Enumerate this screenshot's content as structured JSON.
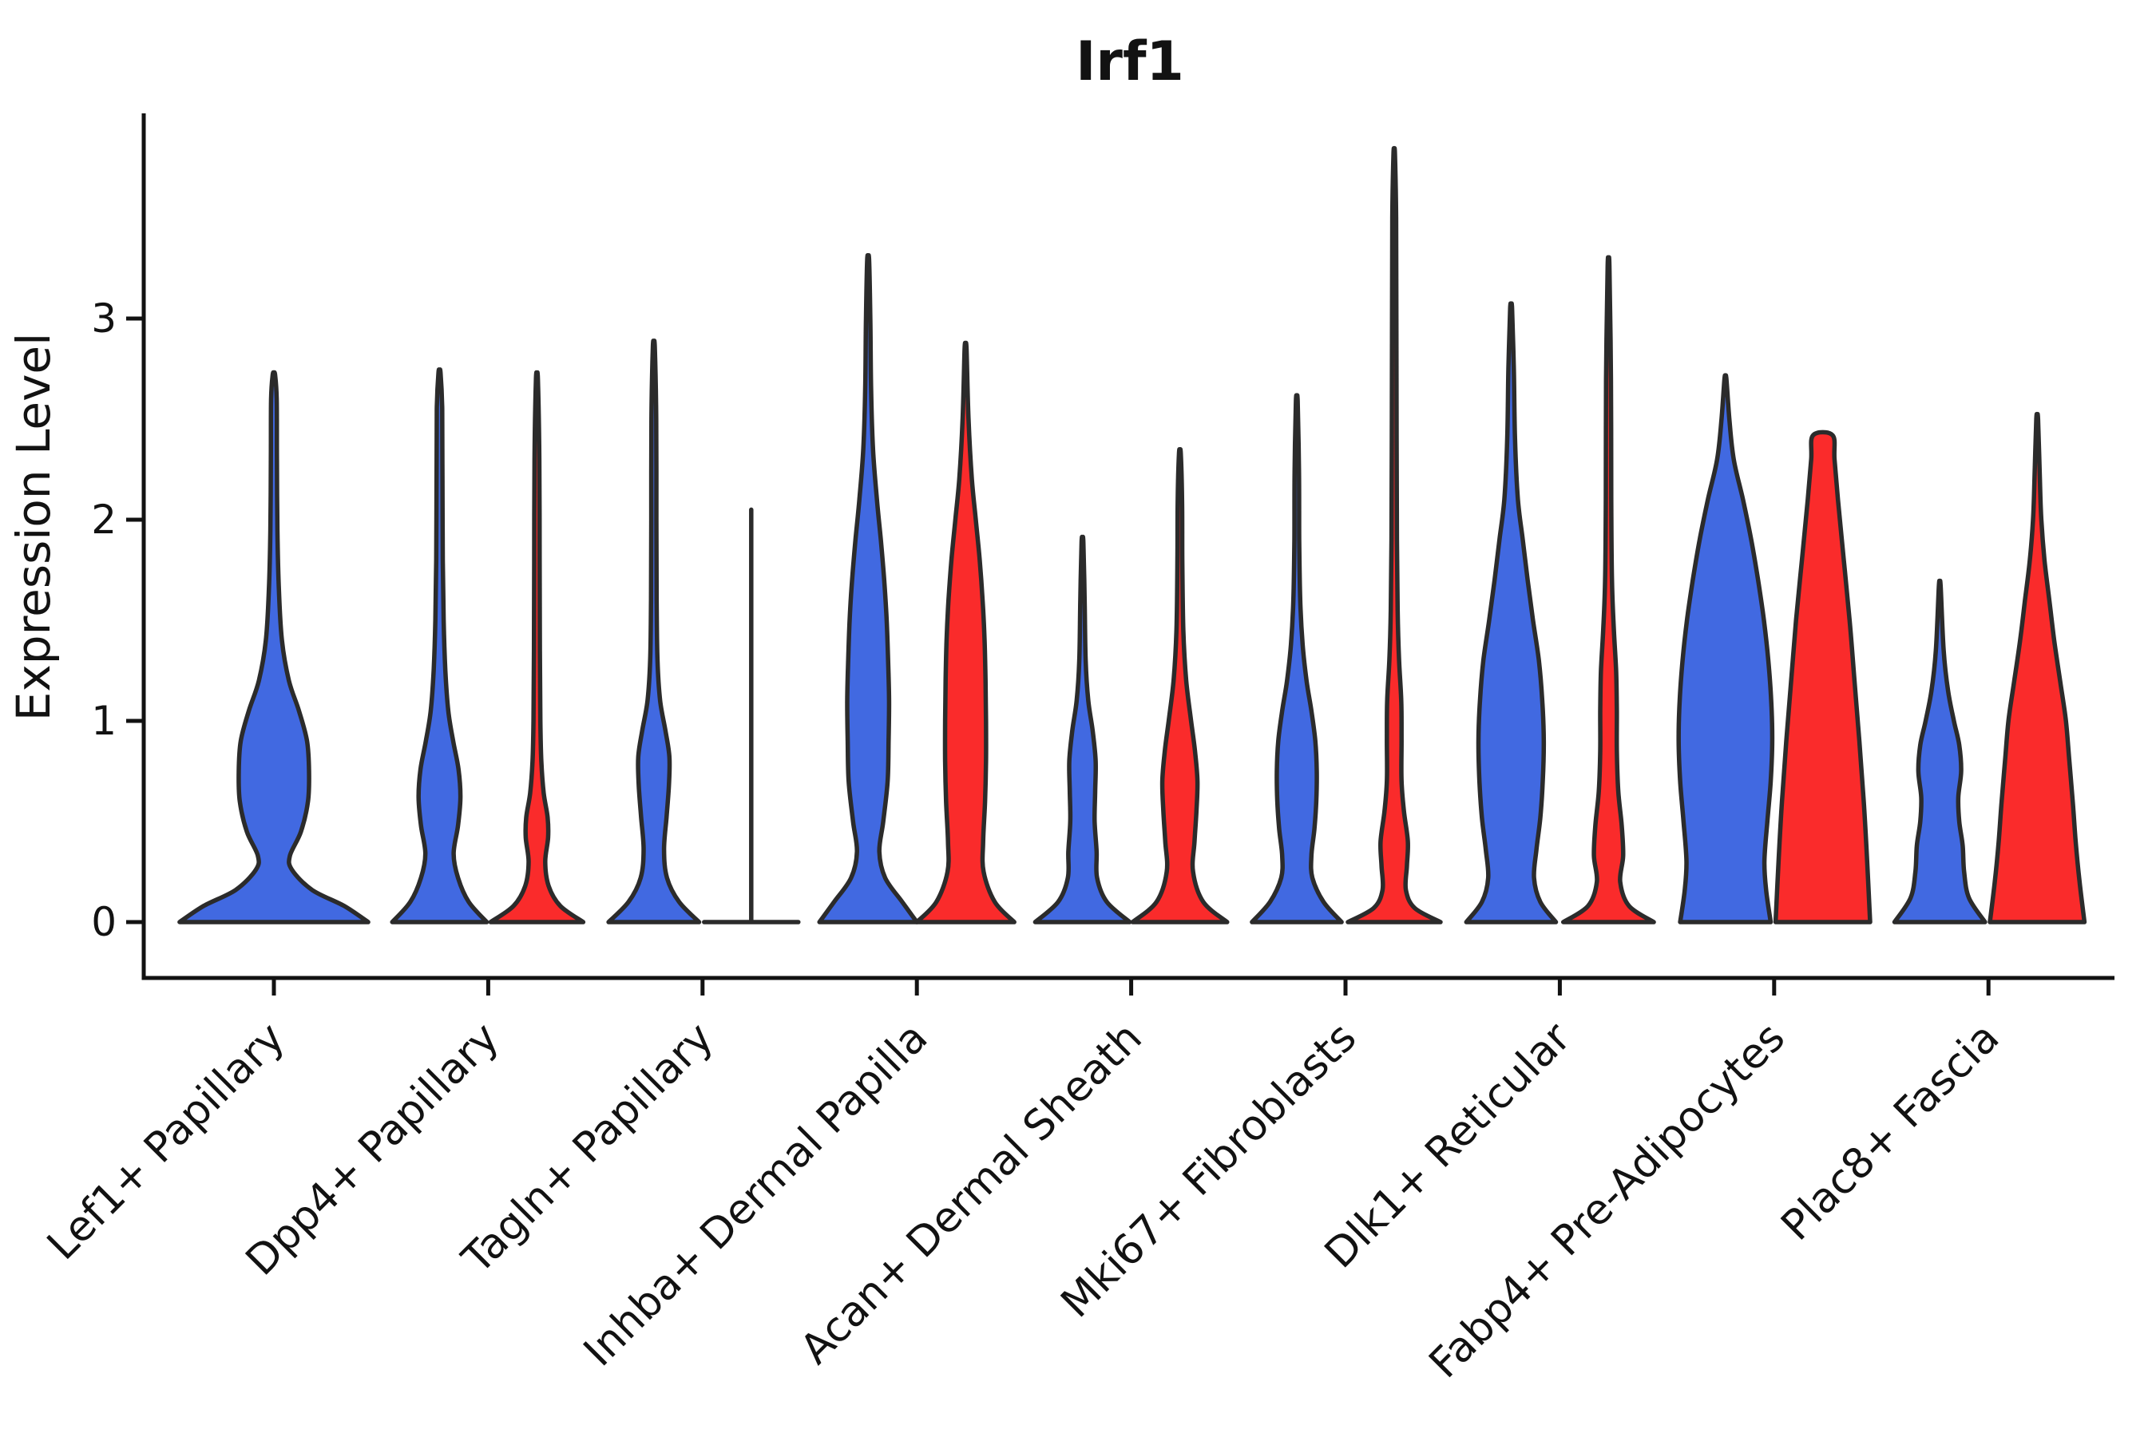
{
  "title": "Irf1",
  "y_axis": {
    "label": "Expression Level",
    "tick_labels": [
      "0",
      "1",
      "2",
      "3"
    ]
  },
  "colors": {
    "blue": "#4169E1",
    "red": "#FA2B2B",
    "outline": "#2B2B2B",
    "axis": "#121212",
    "background": "#FFFFFF"
  },
  "chart_data": {
    "type": "violin",
    "title": "Irf1",
    "ylabel": "Expression Level",
    "ylim": [
      -0.28,
      4.02
    ],
    "yticks": [
      0,
      1,
      2,
      3
    ],
    "grid": false,
    "legend": "none",
    "categories": [
      "Lef1+ Papillary",
      "Dpp4+ Papillary",
      "Tagln+ Papillary",
      "Inhba+ Dermal Papilla",
      "Acan+ Dermal Sheath",
      "Mki67+ Fibroblasts",
      "Dlk1+ Reticular",
      "Fabp4+ Pre-Adipocytes",
      "Plac8+ Fascia"
    ],
    "series": [
      "blue",
      "red"
    ],
    "violins": [
      {
        "category_index": 0,
        "series": "blue",
        "single": true,
        "rel_width": 2.06,
        "max": 2.72,
        "profile": [
          [
            0,
            0.94
          ],
          [
            0.08,
            0.7
          ],
          [
            0.16,
            0.38
          ],
          [
            0.26,
            0.18
          ],
          [
            0.33,
            0.16
          ],
          [
            0.45,
            0.27
          ],
          [
            0.6,
            0.34
          ],
          [
            0.75,
            0.35
          ],
          [
            0.9,
            0.33
          ],
          [
            1.05,
            0.25
          ],
          [
            1.2,
            0.15
          ],
          [
            1.4,
            0.08
          ],
          [
            1.65,
            0.05
          ],
          [
            1.95,
            0.035
          ],
          [
            2.3,
            0.03
          ],
          [
            2.6,
            0.028
          ],
          [
            2.72,
            0.012
          ]
        ]
      },
      {
        "category_index": 1,
        "series": "blue",
        "rel_width": 1,
        "max": 2.73,
        "profile": [
          [
            0,
            0.97
          ],
          [
            0.1,
            0.6
          ],
          [
            0.22,
            0.38
          ],
          [
            0.34,
            0.29
          ],
          [
            0.48,
            0.38
          ],
          [
            0.62,
            0.43
          ],
          [
            0.76,
            0.39
          ],
          [
            0.9,
            0.28
          ],
          [
            1.05,
            0.18
          ],
          [
            1.25,
            0.12
          ],
          [
            1.5,
            0.085
          ],
          [
            1.8,
            0.068
          ],
          [
            2.2,
            0.06
          ],
          [
            2.55,
            0.055
          ],
          [
            2.73,
            0.022
          ]
        ]
      },
      {
        "category_index": 1,
        "series": "red",
        "rel_width": 1,
        "max": 2.7,
        "profile": [
          [
            0,
            0.95
          ],
          [
            0.08,
            0.48
          ],
          [
            0.18,
            0.24
          ],
          [
            0.3,
            0.17
          ],
          [
            0.42,
            0.23
          ],
          [
            0.52,
            0.22
          ],
          [
            0.64,
            0.14
          ],
          [
            0.8,
            0.09
          ],
          [
            1.0,
            0.07
          ],
          [
            1.35,
            0.06
          ],
          [
            1.8,
            0.055
          ],
          [
            2.3,
            0.05
          ],
          [
            2.7,
            0.02
          ]
        ]
      },
      {
        "category_index": 2,
        "series": "blue",
        "rel_width": 1,
        "max": 2.86,
        "profile": [
          [
            0,
            0.93
          ],
          [
            0.1,
            0.52
          ],
          [
            0.22,
            0.27
          ],
          [
            0.36,
            0.21
          ],
          [
            0.52,
            0.26
          ],
          [
            0.68,
            0.31
          ],
          [
            0.82,
            0.32
          ],
          [
            0.95,
            0.24
          ],
          [
            1.1,
            0.13
          ],
          [
            1.3,
            0.075
          ],
          [
            1.6,
            0.058
          ],
          [
            2.0,
            0.052
          ],
          [
            2.5,
            0.05
          ],
          [
            2.86,
            0.02
          ]
        ]
      },
      {
        "category_index": 2,
        "series": "red",
        "degenerate": true,
        "max": 2.05,
        "profile": [
          [
            0,
            0
          ]
        ]
      },
      {
        "category_index": 3,
        "series": "blue",
        "rel_width": 1,
        "max": 3.29,
        "profile": [
          [
            0,
            1.0
          ],
          [
            0.1,
            0.7
          ],
          [
            0.22,
            0.35
          ],
          [
            0.35,
            0.23
          ],
          [
            0.5,
            0.31
          ],
          [
            0.7,
            0.4
          ],
          [
            0.9,
            0.42
          ],
          [
            1.1,
            0.43
          ],
          [
            1.3,
            0.41
          ],
          [
            1.5,
            0.38
          ],
          [
            1.7,
            0.33
          ],
          [
            1.9,
            0.26
          ],
          [
            2.1,
            0.18
          ],
          [
            2.35,
            0.1
          ],
          [
            2.65,
            0.06
          ],
          [
            3.0,
            0.045
          ],
          [
            3.29,
            0.02
          ]
        ]
      },
      {
        "category_index": 3,
        "series": "red",
        "rel_width": 1,
        "max": 2.85,
        "profile": [
          [
            0,
            1.0
          ],
          [
            0.1,
            0.6
          ],
          [
            0.25,
            0.37
          ],
          [
            0.4,
            0.36
          ],
          [
            0.6,
            0.4
          ],
          [
            0.8,
            0.42
          ],
          [
            1.0,
            0.42
          ],
          [
            1.2,
            0.41
          ],
          [
            1.4,
            0.39
          ],
          [
            1.6,
            0.35
          ],
          [
            1.8,
            0.29
          ],
          [
            2.0,
            0.21
          ],
          [
            2.2,
            0.13
          ],
          [
            2.5,
            0.06
          ],
          [
            2.85,
            0.02
          ]
        ]
      },
      {
        "category_index": 4,
        "series": "blue",
        "rel_width": 1,
        "max": 1.89,
        "profile": [
          [
            0,
            0.97
          ],
          [
            0.1,
            0.5
          ],
          [
            0.22,
            0.3
          ],
          [
            0.35,
            0.29
          ],
          [
            0.5,
            0.25
          ],
          [
            0.65,
            0.26
          ],
          [
            0.8,
            0.27
          ],
          [
            0.95,
            0.21
          ],
          [
            1.1,
            0.12
          ],
          [
            1.3,
            0.065
          ],
          [
            1.6,
            0.045
          ],
          [
            1.89,
            0.018
          ]
        ]
      },
      {
        "category_index": 4,
        "series": "red",
        "rel_width": 1,
        "max": 2.33,
        "profile": [
          [
            0,
            0.97
          ],
          [
            0.1,
            0.48
          ],
          [
            0.25,
            0.27
          ],
          [
            0.4,
            0.3
          ],
          [
            0.55,
            0.34
          ],
          [
            0.7,
            0.36
          ],
          [
            0.85,
            0.31
          ],
          [
            1.0,
            0.23
          ],
          [
            1.2,
            0.13
          ],
          [
            1.45,
            0.07
          ],
          [
            1.8,
            0.05
          ],
          [
            2.1,
            0.045
          ],
          [
            2.33,
            0.018
          ]
        ]
      },
      {
        "category_index": 5,
        "series": "blue",
        "rel_width": 1,
        "max": 2.59,
        "profile": [
          [
            0,
            0.92
          ],
          [
            0.1,
            0.55
          ],
          [
            0.22,
            0.32
          ],
          [
            0.33,
            0.3
          ],
          [
            0.46,
            0.36
          ],
          [
            0.6,
            0.4
          ],
          [
            0.75,
            0.41
          ],
          [
            0.9,
            0.38
          ],
          [
            1.05,
            0.3
          ],
          [
            1.2,
            0.2
          ],
          [
            1.38,
            0.12
          ],
          [
            1.6,
            0.07
          ],
          [
            1.9,
            0.05
          ],
          [
            2.25,
            0.045
          ],
          [
            2.59,
            0.018
          ]
        ]
      },
      {
        "category_index": 5,
        "series": "red",
        "rel_width": 1,
        "max": 3.82,
        "profile": [
          [
            0,
            0.95
          ],
          [
            0.07,
            0.42
          ],
          [
            0.16,
            0.24
          ],
          [
            0.28,
            0.26
          ],
          [
            0.4,
            0.28
          ],
          [
            0.55,
            0.2
          ],
          [
            0.7,
            0.15
          ],
          [
            0.9,
            0.15
          ],
          [
            1.1,
            0.145
          ],
          [
            1.3,
            0.1
          ],
          [
            1.55,
            0.07
          ],
          [
            1.9,
            0.055
          ],
          [
            2.4,
            0.05
          ],
          [
            3.0,
            0.045
          ],
          [
            3.5,
            0.04
          ],
          [
            3.82,
            0.015
          ]
        ]
      },
      {
        "category_index": 6,
        "series": "blue",
        "rel_width": 1,
        "max": 3.05,
        "profile": [
          [
            0,
            0.92
          ],
          [
            0.1,
            0.6
          ],
          [
            0.22,
            0.47
          ],
          [
            0.36,
            0.52
          ],
          [
            0.52,
            0.6
          ],
          [
            0.7,
            0.65
          ],
          [
            0.9,
            0.67
          ],
          [
            1.1,
            0.64
          ],
          [
            1.3,
            0.57
          ],
          [
            1.5,
            0.45
          ],
          [
            1.7,
            0.34
          ],
          [
            1.9,
            0.24
          ],
          [
            2.1,
            0.14
          ],
          [
            2.4,
            0.08
          ],
          [
            2.75,
            0.055
          ],
          [
            3.05,
            0.02
          ]
        ]
      },
      {
        "category_index": 6,
        "series": "red",
        "rel_width": 1,
        "max": 3.26,
        "profile": [
          [
            0,
            0.93
          ],
          [
            0.08,
            0.42
          ],
          [
            0.2,
            0.24
          ],
          [
            0.33,
            0.3
          ],
          [
            0.48,
            0.27
          ],
          [
            0.65,
            0.2
          ],
          [
            0.85,
            0.17
          ],
          [
            1.05,
            0.17
          ],
          [
            1.25,
            0.155
          ],
          [
            1.45,
            0.11
          ],
          [
            1.7,
            0.07
          ],
          [
            2.1,
            0.055
          ],
          [
            2.7,
            0.05
          ],
          [
            3.26,
            0.018
          ]
        ]
      },
      {
        "category_index": 7,
        "series": "blue",
        "rel_width": 1,
        "max": 2.7,
        "profile": [
          [
            0,
            0.93
          ],
          [
            0.15,
            0.84
          ],
          [
            0.3,
            0.8
          ],
          [
            0.5,
            0.86
          ],
          [
            0.7,
            0.93
          ],
          [
            0.9,
            0.96
          ],
          [
            1.1,
            0.94
          ],
          [
            1.3,
            0.88
          ],
          [
            1.5,
            0.79
          ],
          [
            1.7,
            0.67
          ],
          [
            1.9,
            0.53
          ],
          [
            2.1,
            0.36
          ],
          [
            2.3,
            0.17
          ],
          [
            2.5,
            0.08
          ],
          [
            2.7,
            0.02
          ]
        ]
      },
      {
        "category_index": 7,
        "series": "red",
        "rel_width": 1,
        "flat_top": true,
        "max": 2.42,
        "profile": [
          [
            0,
            0.97
          ],
          [
            0.3,
            0.91
          ],
          [
            0.6,
            0.84
          ],
          [
            0.9,
            0.75
          ],
          [
            1.2,
            0.65
          ],
          [
            1.5,
            0.55
          ],
          [
            1.8,
            0.43
          ],
          [
            2.1,
            0.31
          ],
          [
            2.3,
            0.24
          ],
          [
            2.42,
            0.2
          ]
        ]
      },
      {
        "category_index": 8,
        "series": "blue",
        "rel_width": 1,
        "max": 1.67,
        "profile": [
          [
            0,
            0.93
          ],
          [
            0.12,
            0.6
          ],
          [
            0.25,
            0.5
          ],
          [
            0.38,
            0.47
          ],
          [
            0.5,
            0.4
          ],
          [
            0.62,
            0.38
          ],
          [
            0.75,
            0.44
          ],
          [
            0.88,
            0.4
          ],
          [
            1.0,
            0.29
          ],
          [
            1.15,
            0.17
          ],
          [
            1.35,
            0.08
          ],
          [
            1.67,
            0.018
          ]
        ]
      },
      {
        "category_index": 8,
        "series": "red",
        "rel_width": 1,
        "max": 2.5,
        "profile": [
          [
            0,
            0.97
          ],
          [
            0.2,
            0.87
          ],
          [
            0.4,
            0.79
          ],
          [
            0.6,
            0.73
          ],
          [
            0.8,
            0.66
          ],
          [
            1.0,
            0.59
          ],
          [
            1.2,
            0.47
          ],
          [
            1.4,
            0.35
          ],
          [
            1.6,
            0.25
          ],
          [
            1.8,
            0.15
          ],
          [
            2.0,
            0.085
          ],
          [
            2.2,
            0.055
          ],
          [
            2.5,
            0.018
          ]
        ]
      }
    ]
  }
}
